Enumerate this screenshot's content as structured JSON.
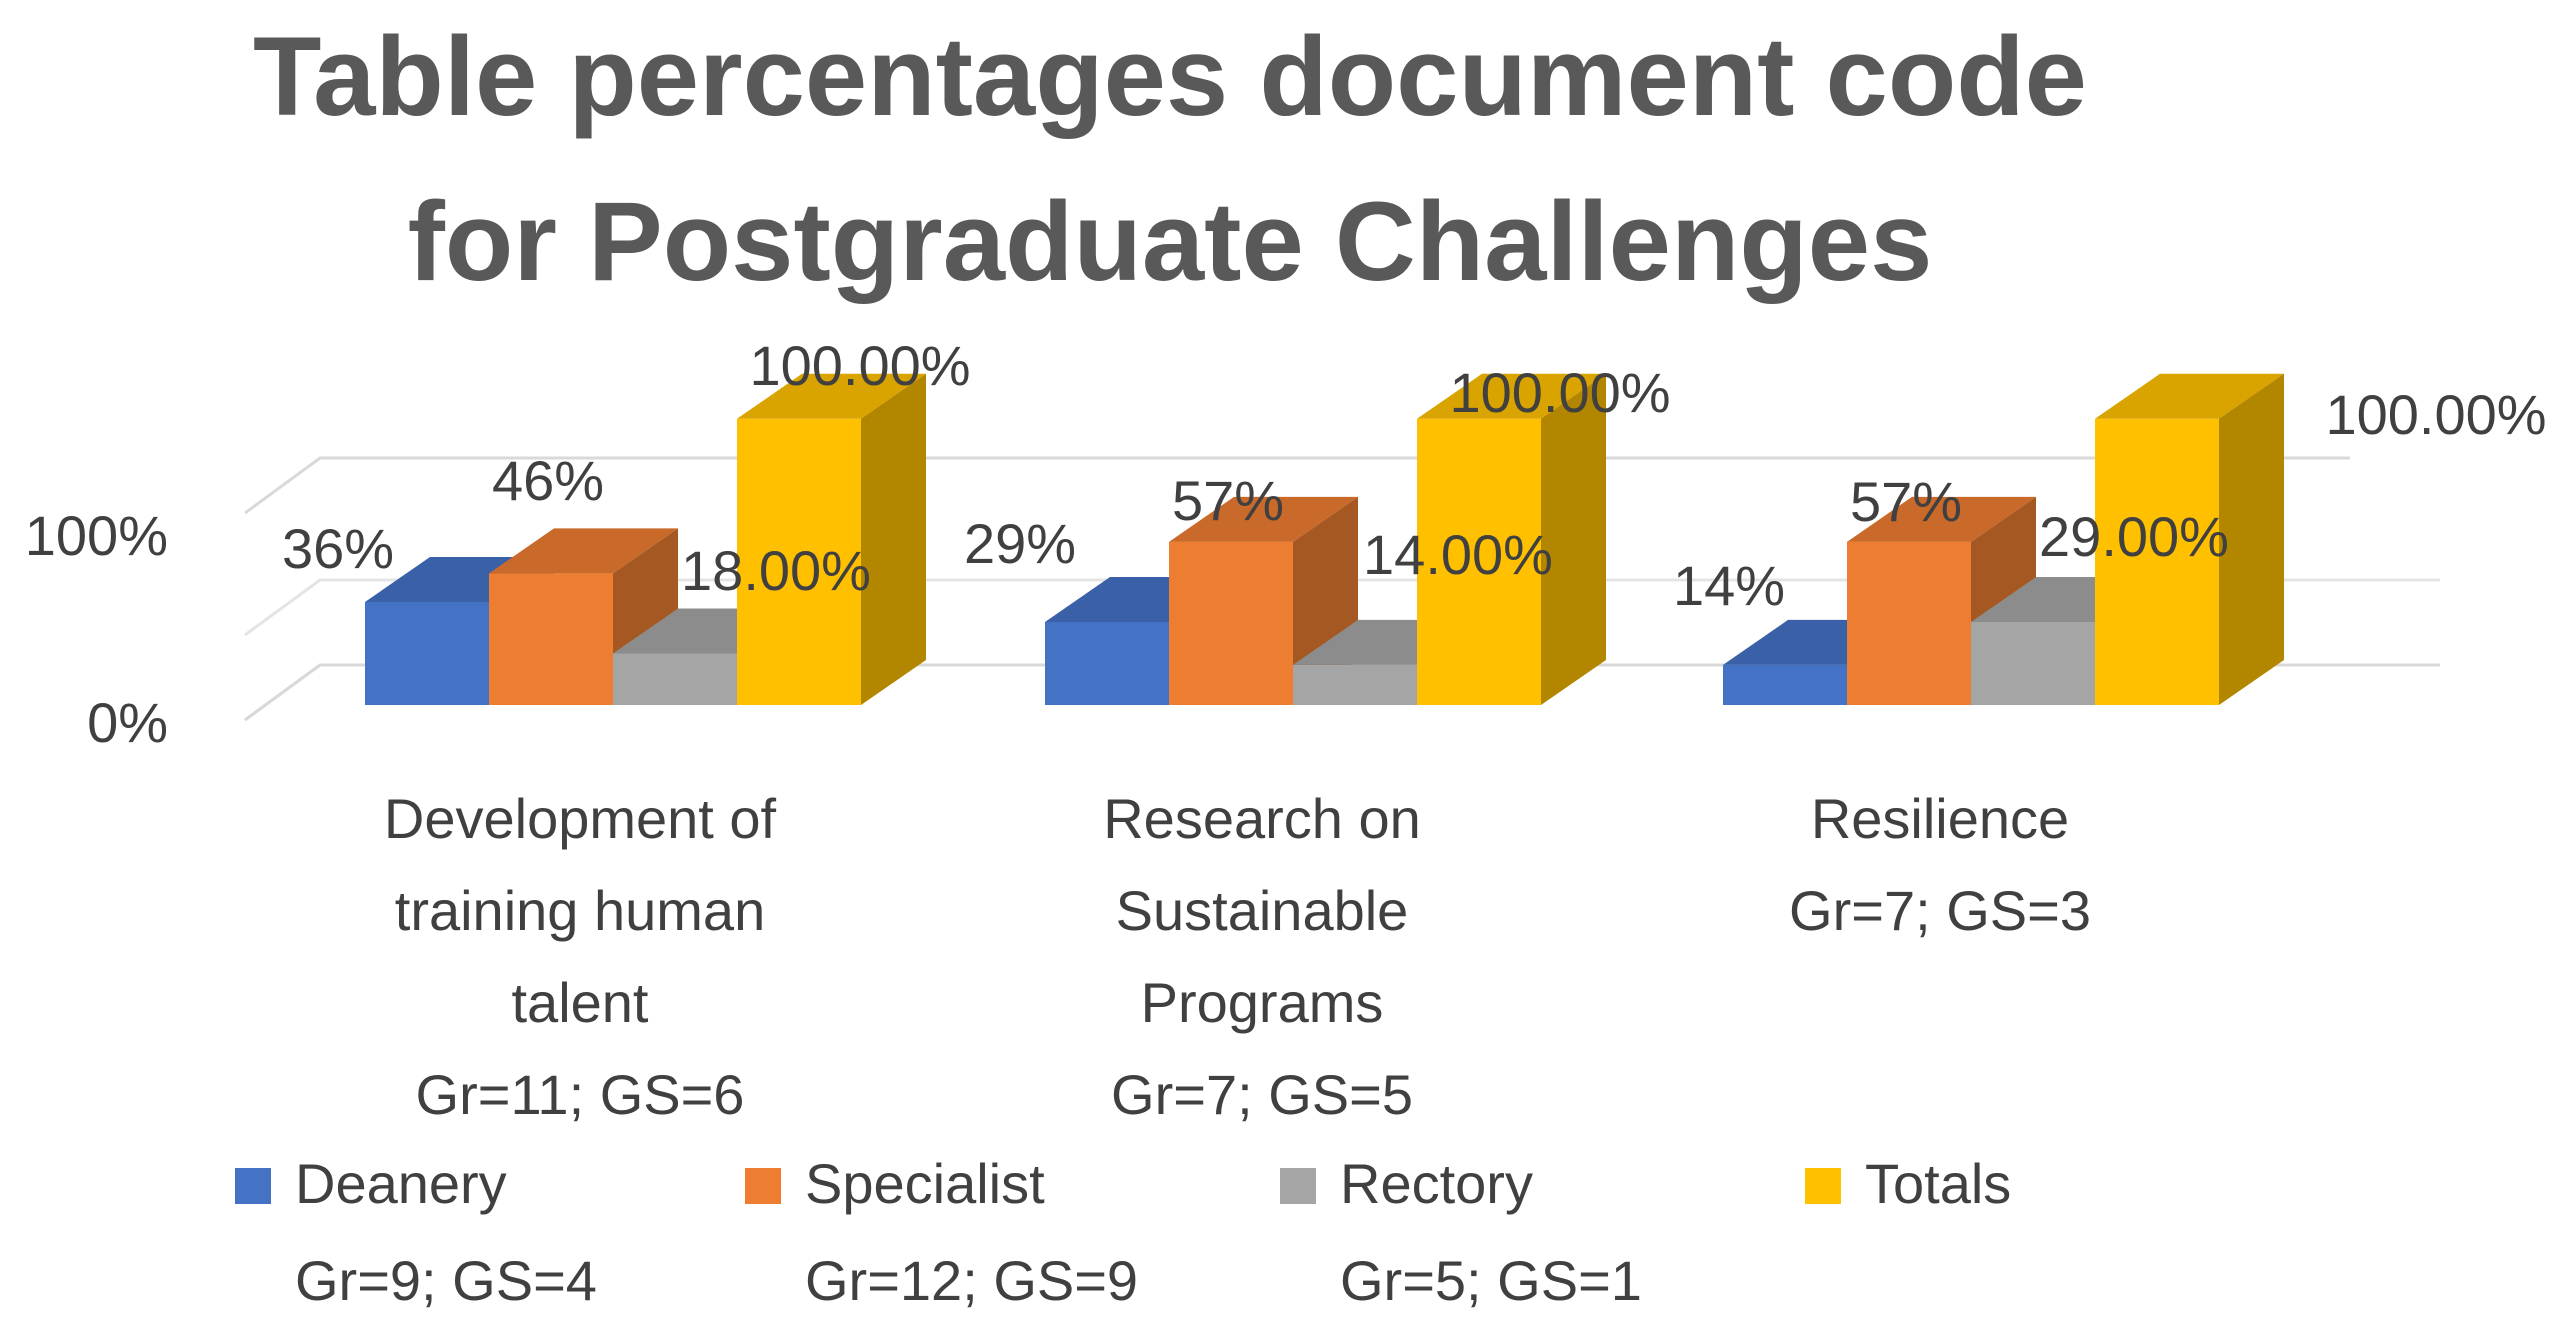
{
  "chart_data": {
    "type": "bar",
    "subtype": "3d-clustered-column",
    "title": "Table percentages document code for Postgraduate Challenges",
    "title_lines": [
      "Table percentages document code",
      "for Postgraduate Challenges"
    ],
    "xlabel": "",
    "ylabel": "",
    "ylim": [
      0,
      1
    ],
    "ytick_labels": [
      "0%",
      "100%"
    ],
    "grid": true,
    "legend_position": "bottom",
    "categories": [
      [
        "Development of",
        "training human",
        "talent",
        "Gr=11;  GS=6"
      ],
      [
        "Research on",
        "Sustainable",
        "Programs",
        "Gr=7;  GS=5"
      ],
      [
        "Resilience",
        "Gr=7;  GS=3"
      ]
    ],
    "series": [
      {
        "name": "Deanery",
        "legend_sub": "Gr=9;  GS=4",
        "color": "#4472C4",
        "values": [
          0.36,
          0.29,
          0.14
        ],
        "data_labels": [
          "36%",
          "29%",
          "14%"
        ]
      },
      {
        "name": "Specialist",
        "legend_sub": "Gr=12;  GS=9",
        "color": "#ED7D31",
        "values": [
          0.46,
          0.57,
          0.57
        ],
        "data_labels": [
          "46%",
          "57%",
          "57%"
        ]
      },
      {
        "name": "Rectory",
        "legend_sub": "Gr=5;  GS=1",
        "color": "#A5A5A5",
        "values": [
          0.18,
          0.14,
          0.29
        ],
        "data_labels": [
          "18.00%",
          "14.00%",
          "29.00%"
        ]
      },
      {
        "name": "Totals",
        "legend_sub": "",
        "color": "#FFC000",
        "values": [
          1.0,
          1.0,
          1.0
        ],
        "data_labels": [
          "100.00%",
          "100.00%",
          "100.00%"
        ]
      }
    ]
  }
}
